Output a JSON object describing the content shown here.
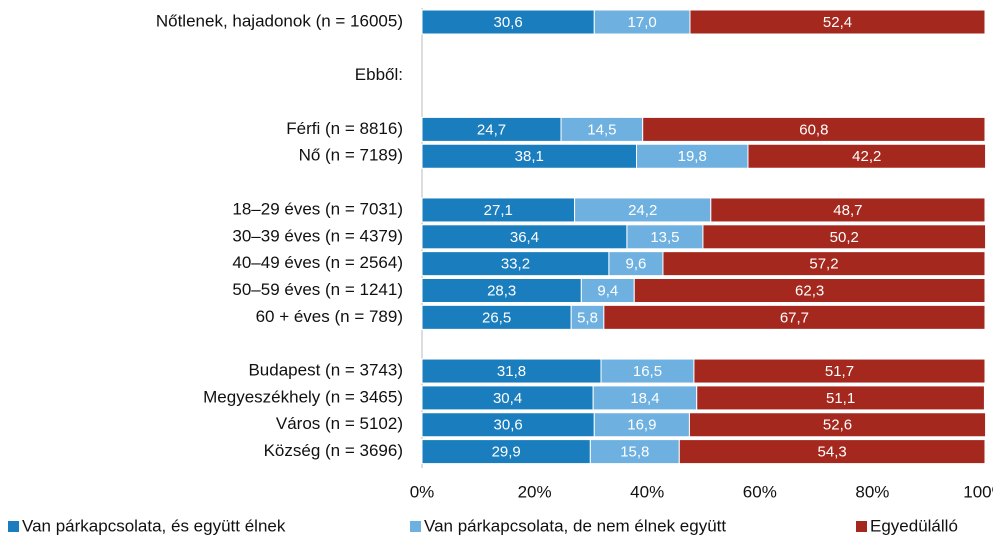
{
  "chart_data": {
    "type": "stacked_bar_horizontal",
    "categories": [
      "Nőtlenek, hajadonok (n = 16005)",
      null,
      "Ebből:",
      null,
      "Férfi (n = 8816)",
      "Nő (n = 7189)",
      null,
      "18–29 éves (n = 7031)",
      "30–39 éves (n = 4379)",
      "40–49 éves (n = 2564)",
      "50–59 éves (n = 1241)",
      "60 + éves (n = 789)",
      null,
      "Budapest (n = 3743)",
      "Megyeszékhely (n = 3465)",
      "Város (n = 5102)",
      "Község (n = 3696)"
    ],
    "series": [
      {
        "name": "Van párkapcsolata, és együtt élnek",
        "color": "#1a7dbd",
        "values": [
          30.6,
          null,
          null,
          null,
          24.7,
          38.1,
          null,
          27.1,
          36.4,
          33.2,
          28.3,
          26.5,
          null,
          31.8,
          30.4,
          30.6,
          29.9
        ],
        "value_labels": [
          "30,6",
          null,
          null,
          null,
          "24,7",
          "38,1",
          null,
          "27,1",
          "36,4",
          "33,2",
          "28,3",
          "26,5",
          null,
          "31,8",
          "30,4",
          "30,6",
          "29,9"
        ]
      },
      {
        "name": "Van párkapcsolata, de nem élnek együtt",
        "color": "#6eb1e1",
        "values": [
          17.0,
          null,
          null,
          null,
          14.5,
          19.8,
          null,
          24.2,
          13.5,
          9.6,
          9.4,
          5.8,
          null,
          16.5,
          18.4,
          16.9,
          15.8
        ],
        "value_labels": [
          "17,0",
          null,
          null,
          null,
          "14,5",
          "19,8",
          null,
          "24,2",
          "13,5",
          "9,6",
          "9,4",
          "5,8",
          null,
          "16,5",
          "18,4",
          "16,9",
          "15,8"
        ]
      },
      {
        "name": "Egyedülálló",
        "color": "#a5281e",
        "values": [
          52.4,
          null,
          null,
          null,
          60.8,
          42.2,
          null,
          48.7,
          50.2,
          57.2,
          62.3,
          67.7,
          null,
          51.7,
          51.1,
          52.6,
          54.3
        ],
        "value_labels": [
          "52,4",
          null,
          null,
          null,
          "60,8",
          "42,2",
          null,
          "48,7",
          "50,2",
          "57,2",
          "62,3",
          "67,7",
          null,
          "51,7",
          "51,1",
          "52,6",
          "54,3"
        ]
      }
    ],
    "xlim": [
      0,
      100
    ],
    "xticks": [
      {
        "value": 0,
        "label": "0%"
      },
      {
        "value": 20,
        "label": "20%"
      },
      {
        "value": 40,
        "label": "40%"
      },
      {
        "value": 60,
        "label": "60%"
      },
      {
        "value": 80,
        "label": "80%"
      },
      {
        "value": 100,
        "label": "100%"
      }
    ],
    "legend": "bottom"
  }
}
